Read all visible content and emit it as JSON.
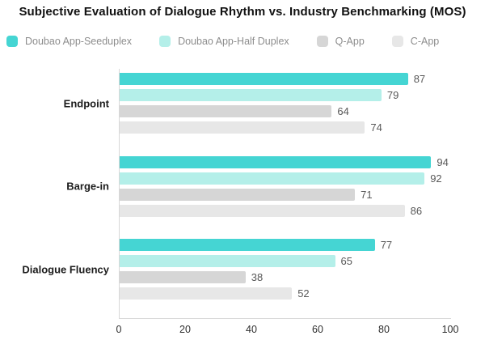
{
  "title": "Subjective Evaluation of Dialogue Rhythm vs. Industry Benchmarking (MOS)",
  "legend": [
    {
      "label": "Doubao App-Seeduplex",
      "color": "#45D5D3",
      "swatch_icon": "rounded-square-swatch"
    },
    {
      "label": "Doubao App-Half Duplex",
      "color": "#B4EFE9",
      "swatch_icon": "rounded-square-swatch"
    },
    {
      "label": "Q-App",
      "color": "#D6D6D6",
      "swatch_icon": "rounded-square-swatch"
    },
    {
      "label": "C-App",
      "color": "#E7E7E7",
      "swatch_icon": "rounded-square-swatch"
    }
  ],
  "chart_data": {
    "type": "bar",
    "orientation": "horizontal",
    "title": "Subjective Evaluation of Dialogue Rhythm vs. Industry Benchmarking (MOS)",
    "categories": [
      "Endpoint",
      "Barge-in",
      "Dialogue Fluency"
    ],
    "series": [
      {
        "name": "Doubao App-Seeduplex",
        "color": "#45D5D3",
        "values": [
          87,
          94,
          77
        ]
      },
      {
        "name": "Doubao App-Half Duplex",
        "color": "#B4EFE9",
        "values": [
          79,
          92,
          65
        ]
      },
      {
        "name": "Q-App",
        "color": "#D6D6D6",
        "values": [
          64,
          71,
          38
        ]
      },
      {
        "name": "C-App",
        "color": "#E7E7E7",
        "values": [
          74,
          86,
          52
        ]
      }
    ],
    "xlabel": "",
    "ylabel": "",
    "xlim": [
      0,
      100
    ],
    "xticks": [
      0,
      20,
      40,
      60,
      80,
      100
    ],
    "grid": false,
    "legend_position": "top",
    "value_labels": true,
    "axis_color": "#d8d8d8"
  }
}
